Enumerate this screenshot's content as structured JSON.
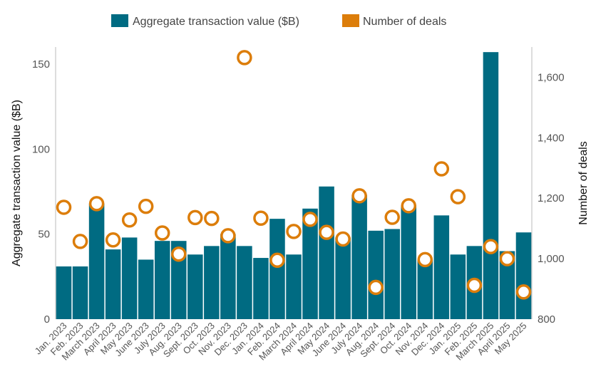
{
  "chart_data": {
    "type": "bar",
    "categories": [
      "Jan. 2023",
      "Feb. 2023",
      "March 2023",
      "April 2023",
      "May 2023",
      "June 2023",
      "July 2023",
      "Aug. 2023",
      "Sept. 2023",
      "Oct. 2023",
      "Nov. 2023",
      "Dec. 2023",
      "Jan. 2024",
      "Feb. 2024",
      "March 2024",
      "April 2024",
      "May 2024",
      "June 2024",
      "July 2024",
      "Aug. 2024",
      "Sept. 2024",
      "Oct. 2024",
      "Nov. 2024",
      "Dec. 2024",
      "Jan. 2025",
      "Feb. 2025",
      "March 2025",
      "April 2025",
      "May 2025"
    ],
    "series": [
      {
        "name": "Aggregate transaction value ($B)",
        "type": "bar",
        "axis": "left",
        "color": "#006b82",
        "values": [
          31,
          31,
          68,
          41,
          48,
          35,
          46,
          46,
          38,
          43,
          50,
          43,
          36,
          59,
          38,
          65,
          78,
          48,
          73,
          52,
          53,
          67,
          35,
          61,
          38,
          43,
          157,
          40,
          51
        ]
      },
      {
        "name": "Number of deals",
        "type": "scatter",
        "axis": "right",
        "color": "#dc7d0a",
        "values": [
          1170,
          1057,
          1182,
          1062,
          1128,
          1173,
          1085,
          1015,
          1136,
          1133,
          1076,
          1665,
          1134,
          995,
          1090,
          1130,
          1087,
          1065,
          1208,
          905,
          1137,
          1175,
          997,
          1297,
          1205,
          912,
          1040,
          1000,
          890
        ]
      }
    ],
    "ylabel": "Aggregate transaction value ($B)",
    "y2label": "Number of deals",
    "ylim": [
      0,
      160
    ],
    "yticks": [
      0,
      50,
      100,
      150
    ],
    "y2lim": [
      800,
      1700
    ],
    "y2ticks": [
      800,
      1000,
      1200,
      1400,
      1600
    ],
    "y2tick_labels": [
      "800",
      "1,000",
      "1,200",
      "1,400",
      "1,600"
    ],
    "legend": "top-center",
    "grid": false
  }
}
